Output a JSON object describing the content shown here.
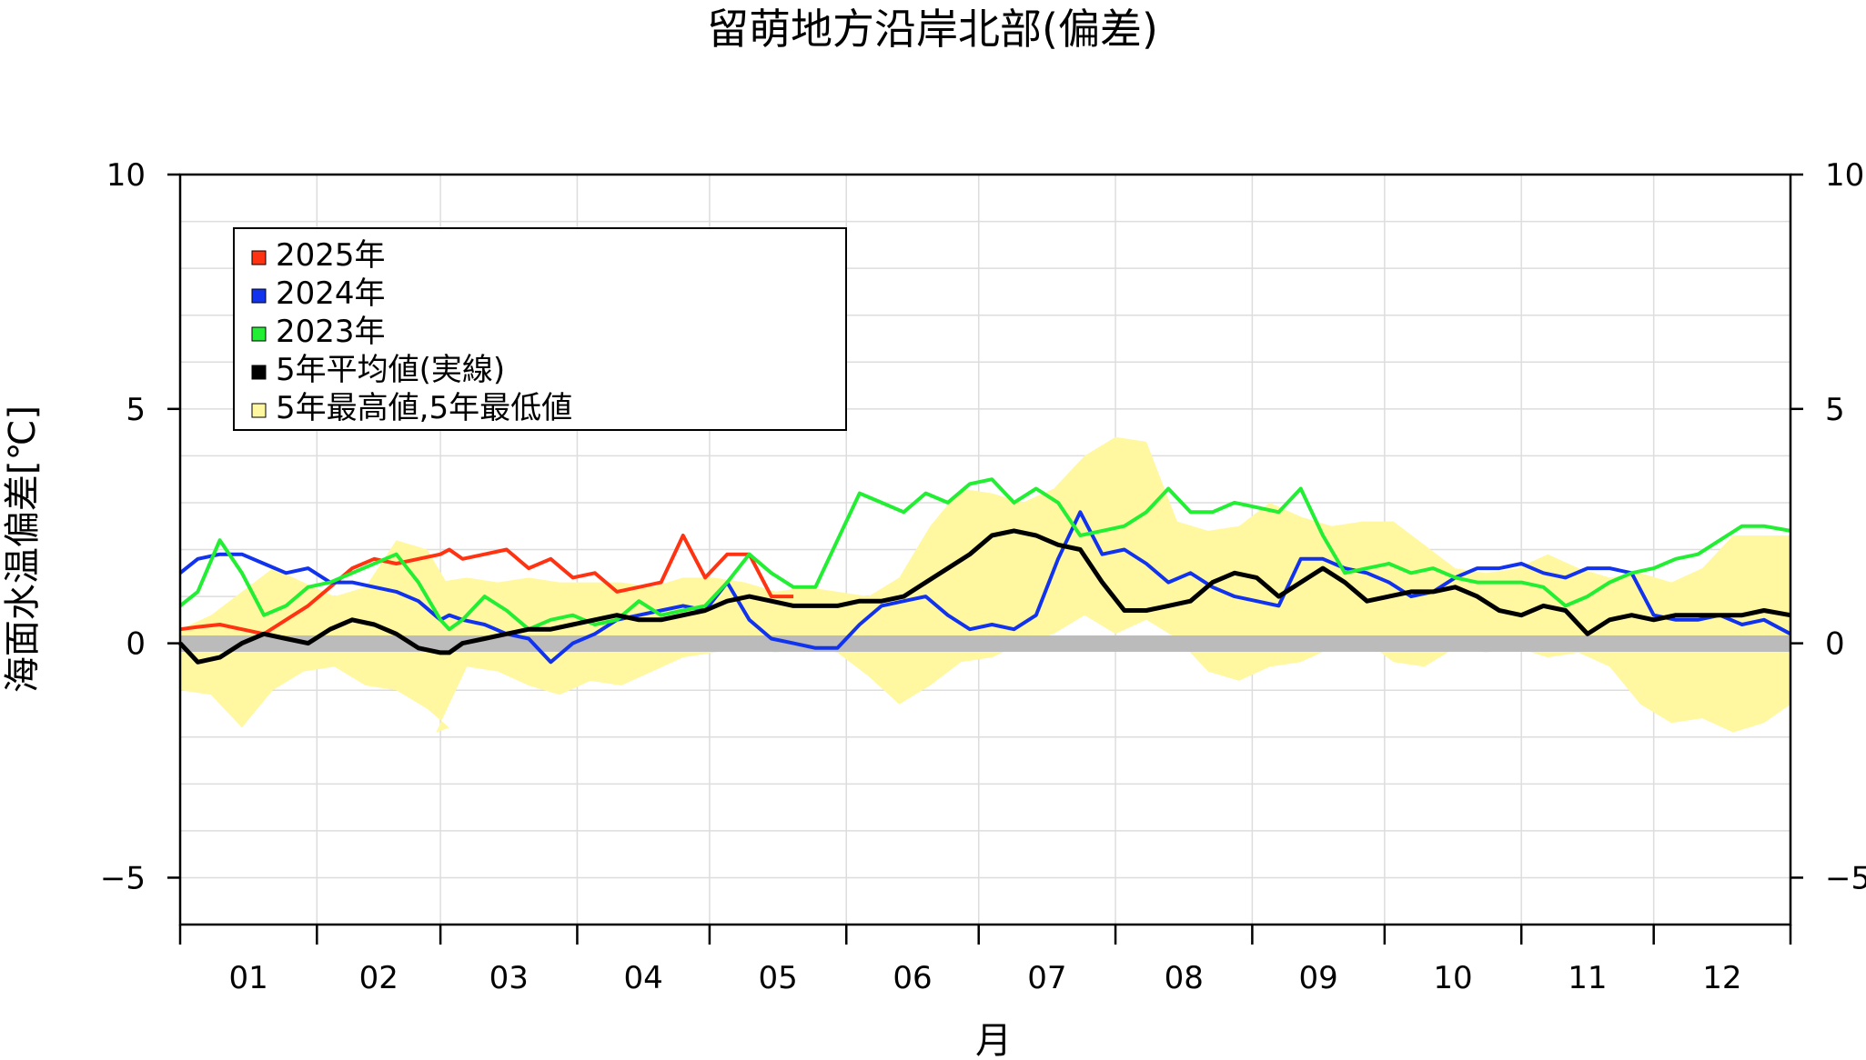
{
  "chart_data": {
    "type": "line",
    "title": "留萌地方沿岸北部(偏差)",
    "xlabel": "月",
    "ylabel": "海面水温偏差[℃]",
    "ylim": [
      -6,
      10
    ],
    "yticks": [
      -5,
      0,
      5,
      10
    ],
    "ytick_labels": [
      "−5",
      "0",
      "5",
      "10"
    ],
    "x_unit": "day of year",
    "xlim": [
      1,
      366
    ],
    "months": [
      "01",
      "02",
      "03",
      "04",
      "05",
      "06",
      "07",
      "08",
      "09",
      "10",
      "11",
      "12"
    ],
    "grid": true,
    "legend_position": "top-left",
    "zero_line_color": "#bbbbbb",
    "band": {
      "name": "5年最高値,5年最低値",
      "color": "#fff8a0",
      "x": [
        1,
        8,
        15,
        22,
        29,
        36,
        43,
        50,
        57,
        62,
        59,
        66,
        73,
        80,
        87,
        94,
        101,
        108,
        115,
        122,
        129,
        136,
        143,
        150,
        157,
        164,
        171,
        178,
        185,
        192,
        199,
        206,
        213,
        220,
        227,
        234,
        241,
        248,
        255,
        262,
        269,
        276,
        283,
        290,
        297,
        304,
        311,
        318,
        325,
        332,
        339,
        346,
        353,
        360,
        366
      ],
      "upper": [
        0.3,
        0.6,
        1.1,
        1.6,
        1.3,
        1.0,
        1.2,
        2.2,
        2.0,
        1.2,
        1.3,
        1.4,
        1.3,
        1.4,
        1.3,
        1.3,
        1.3,
        1.2,
        1.4,
        1.4,
        1.3,
        1.1,
        1.2,
        1.1,
        1.0,
        1.4,
        2.5,
        3.3,
        3.2,
        3.0,
        3.3,
        4.0,
        4.4,
        4.3,
        2.6,
        2.4,
        2.5,
        3.0,
        2.7,
        2.5,
        2.6,
        2.6,
        2.1,
        1.6,
        1.5,
        1.6,
        1.9,
        1.6,
        1.4,
        1.5,
        1.3,
        1.6,
        2.3,
        2.3,
        2.3
      ],
      "lower": [
        -1.0,
        -1.1,
        -1.8,
        -1.0,
        -0.6,
        -0.5,
        -0.9,
        -1.0,
        -1.4,
        -1.8,
        -1.9,
        -0.5,
        -0.6,
        -0.9,
        -1.1,
        -0.8,
        -0.9,
        -0.6,
        -0.3,
        -0.2,
        -0.1,
        -0.2,
        -0.1,
        -0.2,
        -0.7,
        -1.3,
        -0.9,
        -0.4,
        -0.3,
        0.0,
        0.2,
        0.6,
        0.2,
        0.5,
        0.1,
        -0.6,
        -0.8,
        -0.5,
        -0.4,
        -0.1,
        0.1,
        -0.4,
        -0.5,
        -0.1,
        -0.2,
        -0.1,
        -0.3,
        -0.2,
        -0.5,
        -1.3,
        -1.7,
        -1.6,
        -1.9,
        -1.7,
        -1.3
      ]
    },
    "series": [
      {
        "name": "2025年",
        "color": "#ff3311",
        "x": [
          1,
          5,
          10,
          15,
          20,
          25,
          30,
          35,
          40,
          45,
          50,
          55,
          60,
          62,
          65,
          70,
          75,
          80,
          85,
          90,
          95,
          100,
          105,
          110,
          115,
          120,
          125,
          130,
          135,
          140,
          145,
          150,
          155,
          160,
          165,
          170,
          175,
          180,
          185,
          190,
          195,
          200,
          205,
          210,
          215,
          220,
          225,
          230,
          235,
          240,
          245,
          250,
          255,
          260,
          265,
          270,
          275,
          280,
          285,
          290,
          295,
          300,
          305,
          310,
          315,
          320,
          325,
          330,
          335,
          340,
          345,
          350,
          355,
          360,
          366
        ],
        "y": [
          0.3,
          0.35,
          0.4,
          0.3,
          0.2,
          0.5,
          0.8,
          1.2,
          1.6,
          1.8,
          1.7,
          1.8,
          1.9,
          2.0,
          1.8,
          1.9,
          2.0,
          1.6,
          1.8,
          1.4,
          1.5,
          1.1,
          1.2,
          1.3,
          2.3,
          1.4,
          1.9,
          1.9,
          1.0,
          1.0,
          null,
          null,
          null,
          null,
          null,
          null,
          null,
          null,
          null,
          null,
          null,
          null,
          null,
          null,
          null,
          null,
          null,
          null,
          null,
          null,
          null,
          null,
          null,
          null,
          null,
          null,
          null,
          null,
          null,
          null,
          null,
          null,
          null,
          null,
          null,
          null,
          null,
          null,
          null,
          null,
          null,
          null,
          null,
          null,
          null
        ]
      },
      {
        "name": "2024年",
        "color": "#1133ee",
        "x": [
          1,
          5,
          10,
          15,
          20,
          25,
          30,
          35,
          40,
          45,
          50,
          55,
          60,
          62,
          65,
          70,
          75,
          80,
          85,
          90,
          95,
          100,
          105,
          110,
          115,
          120,
          125,
          130,
          135,
          140,
          145,
          150,
          155,
          160,
          165,
          170,
          175,
          180,
          185,
          190,
          195,
          200,
          205,
          210,
          215,
          220,
          225,
          230,
          235,
          240,
          245,
          250,
          255,
          260,
          265,
          270,
          275,
          280,
          285,
          290,
          295,
          300,
          305,
          310,
          315,
          320,
          325,
          330,
          335,
          340,
          345,
          350,
          355,
          360,
          366
        ],
        "y": [
          1.5,
          1.8,
          1.9,
          1.9,
          1.7,
          1.5,
          1.6,
          1.3,
          1.3,
          1.2,
          1.1,
          0.9,
          0.5,
          0.6,
          0.5,
          0.4,
          0.2,
          0.1,
          -0.4,
          0.0,
          0.2,
          0.5,
          0.6,
          0.7,
          0.8,
          0.7,
          1.3,
          0.5,
          0.1,
          0.0,
          -0.1,
          -0.1,
          0.4,
          0.8,
          0.9,
          1.0,
          0.6,
          0.3,
          0.4,
          0.3,
          0.6,
          1.8,
          2.8,
          1.9,
          2.0,
          1.7,
          1.3,
          1.5,
          1.2,
          1.0,
          0.9,
          0.8,
          1.8,
          1.8,
          1.6,
          1.5,
          1.3,
          1.0,
          1.1,
          1.4,
          1.6,
          1.6,
          1.7,
          1.5,
          1.4,
          1.6,
          1.6,
          1.5,
          0.6,
          0.5,
          0.5,
          0.6,
          0.4,
          0.5,
          0.2
        ]
      },
      {
        "name": "2023年",
        "color": "#22ee33",
        "x": [
          1,
          5,
          10,
          15,
          20,
          25,
          30,
          35,
          40,
          45,
          50,
          55,
          60,
          62,
          65,
          70,
          75,
          80,
          85,
          90,
          95,
          100,
          105,
          110,
          115,
          120,
          125,
          130,
          135,
          140,
          145,
          150,
          155,
          160,
          165,
          170,
          175,
          180,
          185,
          190,
          195,
          200,
          205,
          210,
          215,
          220,
          225,
          230,
          235,
          240,
          245,
          250,
          255,
          260,
          265,
          270,
          275,
          280,
          285,
          290,
          295,
          300,
          305,
          310,
          315,
          320,
          325,
          330,
          335,
          340,
          345,
          350,
          355,
          360,
          366
        ],
        "y": [
          0.8,
          1.1,
          2.2,
          1.5,
          0.6,
          0.8,
          1.2,
          1.3,
          1.5,
          1.7,
          1.9,
          1.3,
          0.5,
          0.3,
          0.5,
          1.0,
          0.7,
          0.3,
          0.5,
          0.6,
          0.4,
          0.5,
          0.9,
          0.6,
          0.7,
          0.8,
          1.3,
          1.9,
          1.5,
          1.2,
          1.2,
          2.2,
          3.2,
          3.0,
          2.8,
          3.2,
          3.0,
          3.4,
          3.5,
          3.0,
          3.3,
          3.0,
          2.3,
          2.4,
          2.5,
          2.8,
          3.3,
          2.8,
          2.8,
          3.0,
          2.9,
          2.8,
          3.3,
          2.3,
          1.5,
          1.6,
          1.7,
          1.5,
          1.6,
          1.4,
          1.3,
          1.3,
          1.3,
          1.2,
          0.8,
          1.0,
          1.3,
          1.5,
          1.6,
          1.8,
          1.9,
          2.2,
          2.5,
          2.5,
          2.4
        ]
      },
      {
        "name": "5年平均値(実線)",
        "color": "#000000",
        "x": [
          1,
          5,
          10,
          15,
          20,
          25,
          30,
          35,
          40,
          45,
          50,
          55,
          60,
          62,
          65,
          70,
          75,
          80,
          85,
          90,
          95,
          100,
          105,
          110,
          115,
          120,
          125,
          130,
          135,
          140,
          145,
          150,
          155,
          160,
          165,
          170,
          175,
          180,
          185,
          190,
          195,
          200,
          205,
          210,
          215,
          220,
          225,
          230,
          235,
          240,
          245,
          250,
          255,
          260,
          265,
          270,
          275,
          280,
          285,
          290,
          295,
          300,
          305,
          310,
          315,
          320,
          325,
          330,
          335,
          340,
          345,
          350,
          355,
          360,
          366
        ],
        "y": [
          0.0,
          -0.4,
          -0.3,
          0.0,
          0.2,
          0.1,
          0.0,
          0.3,
          0.5,
          0.4,
          0.2,
          -0.1,
          -0.2,
          -0.2,
          0.0,
          0.1,
          0.2,
          0.3,
          0.3,
          0.4,
          0.5,
          0.6,
          0.5,
          0.5,
          0.6,
          0.7,
          0.9,
          1.0,
          0.9,
          0.8,
          0.8,
          0.8,
          0.9,
          0.9,
          1.0,
          1.3,
          1.6,
          1.9,
          2.3,
          2.4,
          2.3,
          2.1,
          2.0,
          1.3,
          0.7,
          0.7,
          0.8,
          0.9,
          1.3,
          1.5,
          1.4,
          1.0,
          1.3,
          1.6,
          1.3,
          0.9,
          1.0,
          1.1,
          1.1,
          1.2,
          1.0,
          0.7,
          0.6,
          0.8,
          0.7,
          0.2,
          0.5,
          0.6,
          0.5,
          0.6,
          0.6,
          0.6,
          0.6,
          0.7,
          0.6
        ]
      }
    ]
  },
  "legend": {
    "items": [
      {
        "label": "2025年",
        "color": "#ff3311"
      },
      {
        "label": "2024年",
        "color": "#1133ee"
      },
      {
        "label": "2023年",
        "color": "#22ee33"
      },
      {
        "label": "5年平均値(実線)",
        "color": "#000000"
      },
      {
        "label": "5年最高値,5年最低値",
        "color": "#fff8a0"
      }
    ]
  }
}
